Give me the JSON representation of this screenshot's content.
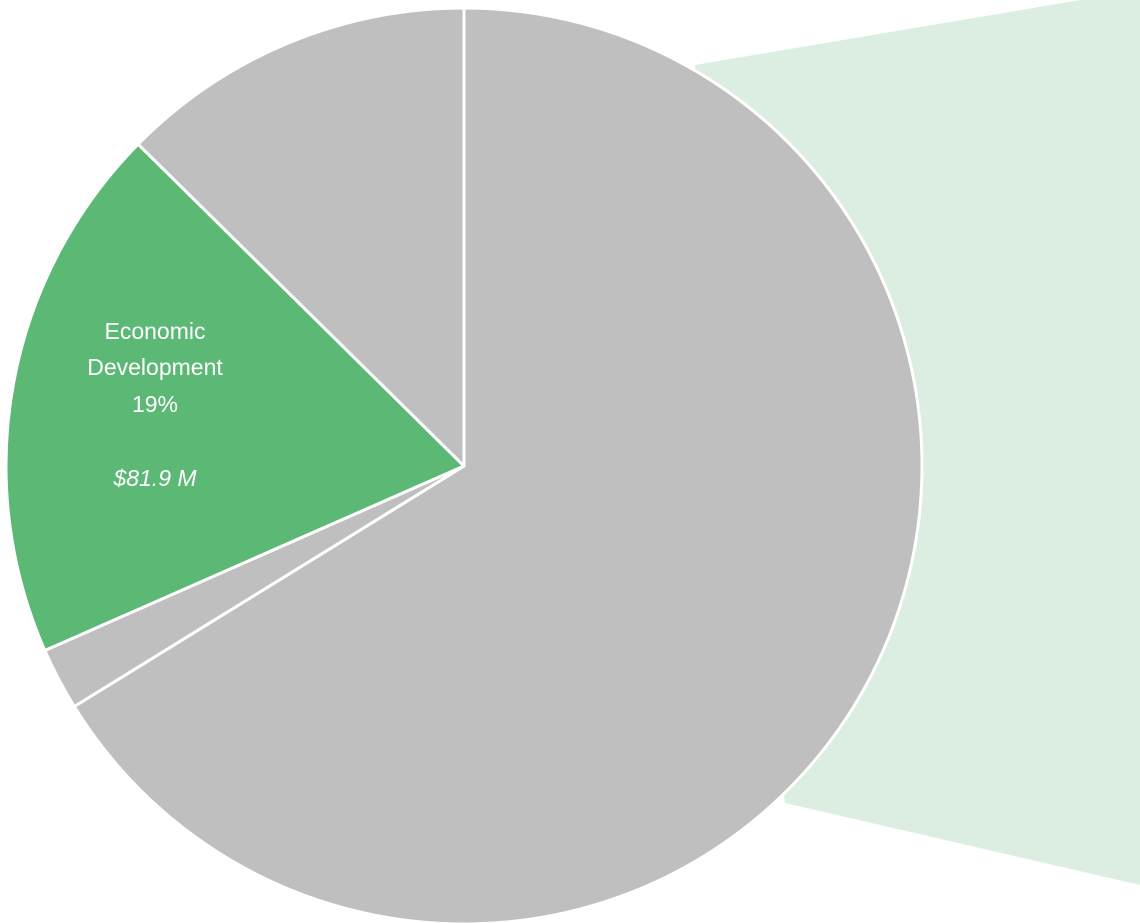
{
  "chart_data": {
    "type": "pie",
    "start_angle_deg": 0,
    "direction": "clockwise",
    "slices": [
      {
        "label": "",
        "percent": 66.2,
        "color": "#bfbfbf"
      },
      {
        "label": "",
        "percent": 2.2,
        "color": "#bfbfbf"
      },
      {
        "label": "Economic Development",
        "label_lines": [
          "Economic",
          "Development"
        ],
        "percent": 19,
        "percent_text": "19%",
        "value": 81.9,
        "value_text": "$81.9 M",
        "color": "#5cb975"
      },
      {
        "label": "",
        "percent": 12.6,
        "color": "#bfbfbf"
      }
    ],
    "legend": false,
    "callout": {
      "color": "#dbeee1",
      "side": "right",
      "from_slice": 0
    }
  }
}
